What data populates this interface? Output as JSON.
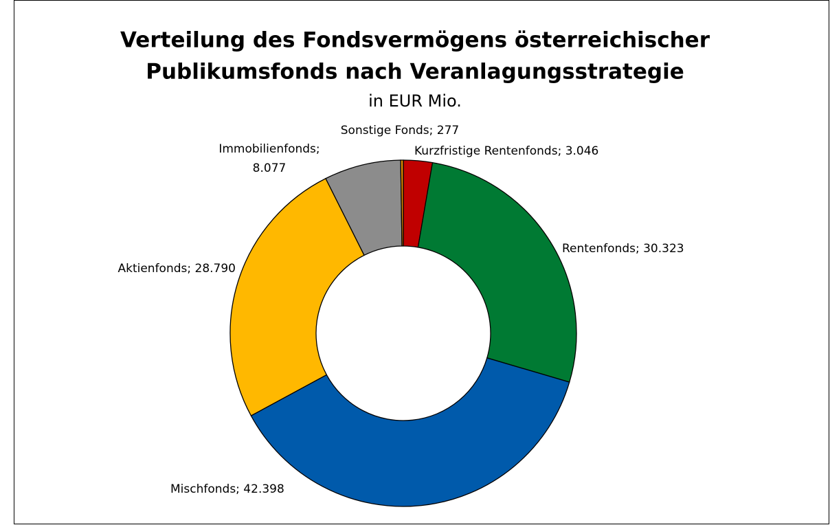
{
  "chart_data": {
    "type": "donut",
    "title": "Verteilung des Fondsvermögens österreichischer",
    "title_line2": "Publikumsfonds nach Veranlagungsstrategie",
    "subtitle": "in EUR Mio.",
    "values": [
      3046,
      30323,
      42398,
      28790,
      8077,
      277
    ],
    "value_labels": [
      "Kurzfristige Rentenfonds; 3.046",
      "Rentenfonds; 30.323",
      "Mischfonds; 42.398",
      "Aktienfonds; 28.790",
      "Immobilienfonds;\n8.077",
      "Sonstige Fonds; 277"
    ],
    "colors": [
      "#c00000",
      "#007a33",
      "#005aab",
      "#ffb800",
      "#8c8c8c",
      "#e08a00"
    ]
  }
}
